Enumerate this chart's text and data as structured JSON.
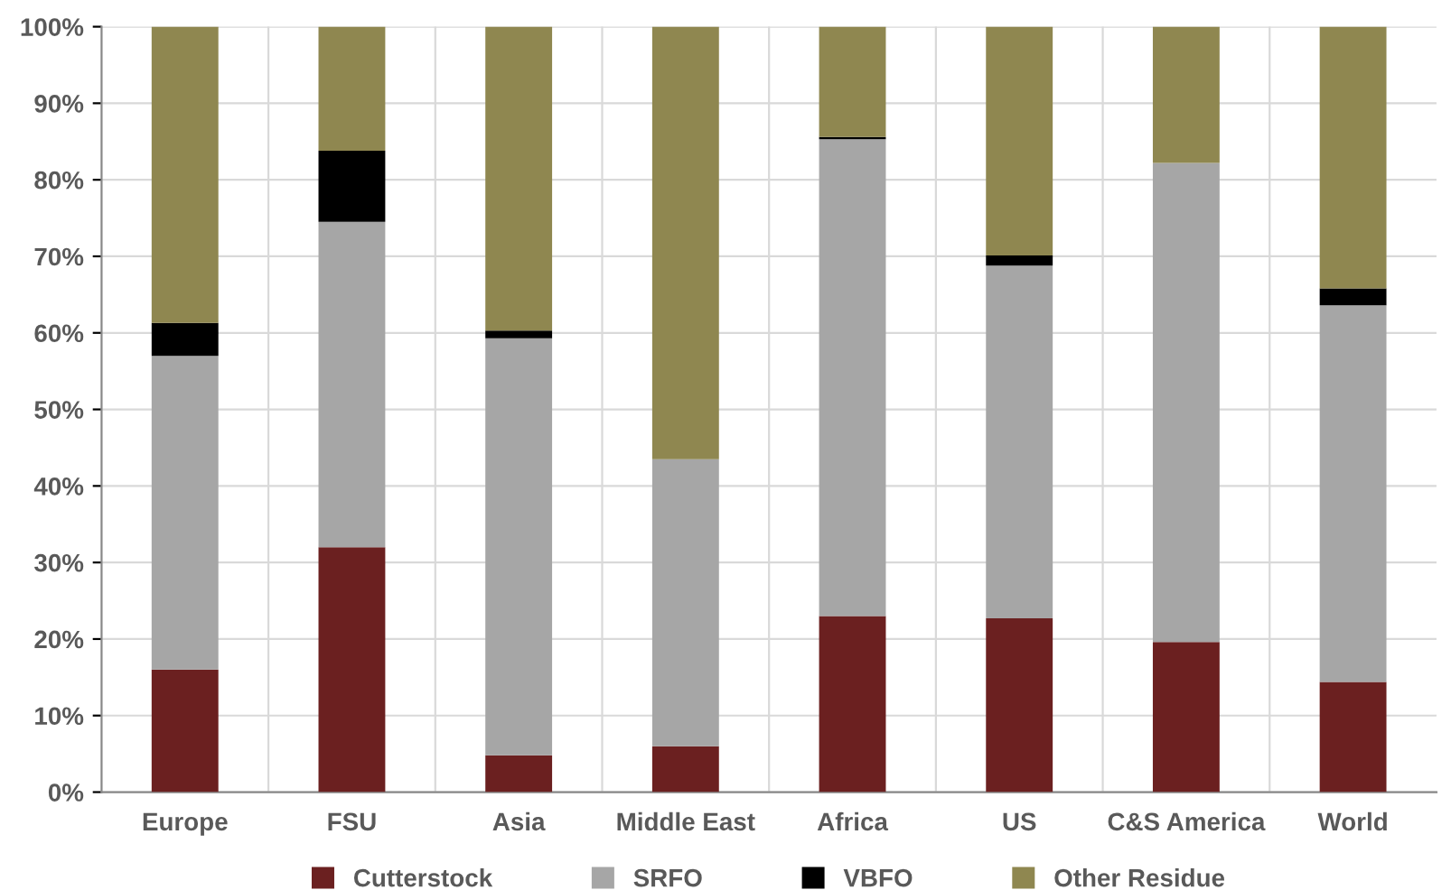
{
  "chart_data": {
    "type": "bar",
    "stacked": true,
    "categories": [
      "Europe",
      "FSU",
      "Asia",
      "Middle East",
      "Africa",
      "US",
      "C&S America",
      "World"
    ],
    "series": [
      {
        "name": "Cutterstock",
        "color": "#6b2020",
        "values": [
          16,
          32,
          4.8,
          6,
          23,
          22.7,
          19.6,
          14.4
        ]
      },
      {
        "name": "SRFO",
        "color": "#a6a6a6",
        "values": [
          41,
          42.5,
          54.5,
          37.5,
          62.3,
          46.1,
          62.6,
          49.2
        ]
      },
      {
        "name": "VBFO",
        "color": "#000000",
        "values": [
          4.3,
          9.3,
          1.0,
          0,
          0.3,
          1.3,
          0,
          2.2
        ]
      },
      {
        "name": "Other Residue",
        "color": "#8f8750",
        "values": [
          38.7,
          16.2,
          39.7,
          56.5,
          14.4,
          29.9,
          17.8,
          34.2
        ]
      }
    ],
    "ylim": [
      0,
      100
    ],
    "yticks": [
      {
        "value": 0,
        "label": "0%"
      },
      {
        "value": 10,
        "label": "10%"
      },
      {
        "value": 20,
        "label": "20%"
      },
      {
        "value": 30,
        "label": "30%"
      },
      {
        "value": 40,
        "label": "40%"
      },
      {
        "value": 50,
        "label": "50%"
      },
      {
        "value": 60,
        "label": "60%"
      },
      {
        "value": 70,
        "label": "70%"
      },
      {
        "value": 80,
        "label": "80%"
      },
      {
        "value": 90,
        "label": "90%"
      },
      {
        "value": 100,
        "label": "100%"
      }
    ],
    "grid": true,
    "legend": "bottom"
  }
}
